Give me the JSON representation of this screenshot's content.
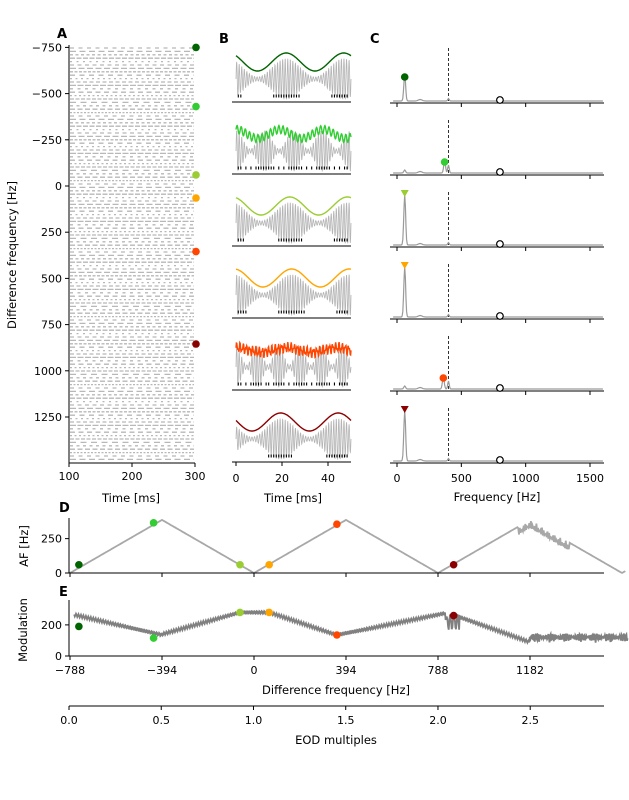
{
  "panel_letters": [
    "A",
    "B",
    "C",
    "D",
    "E"
  ],
  "colors": [
    "#006400",
    "#32cd32",
    "#9acd32",
    "#ffa500",
    "#ff4500",
    "#8b0000"
  ],
  "chart_data": [
    {
      "panel": "A",
      "type": "raster",
      "xlabel": "Time [ms]",
      "ylabel": "Difference frequency [Hz]",
      "xlim": [
        100,
        300
      ],
      "ylim": [
        -750,
        1350
      ],
      "xticks": [
        "100",
        "200",
        "300"
      ],
      "yticks": [
        "−750",
        "−500",
        "−250",
        "0",
        "250",
        "500",
        "750",
        "1000",
        "1250"
      ],
      "ytick_values": [
        -750,
        -500,
        -250,
        0,
        250,
        500,
        750,
        1000,
        1250
      ],
      "markers_df": [
        -750,
        -430,
        -60,
        65,
        355,
        855
      ]
    },
    {
      "panel": "B",
      "type": "line",
      "xlabel": "Time [ms]",
      "xlim": [
        0,
        50
      ],
      "xticks": [
        "0",
        "20",
        "40"
      ],
      "xtick_values": [
        0,
        20,
        40
      ],
      "rows": 6
    },
    {
      "panel": "C",
      "type": "line",
      "xlabel": "Frequency [Hz]",
      "xlim": [
        -30,
        1600
      ],
      "xticks": [
        "0",
        "500",
        "1000",
        "1500"
      ],
      "xtick_values": [
        0,
        500,
        1000,
        1500
      ],
      "eod_line": 400,
      "eod_harmonic": 800,
      "peaks": [
        60,
        370,
        60,
        60,
        360,
        60
      ]
    },
    {
      "panel": "D",
      "type": "line",
      "ylabel": "AF [Hz]",
      "ylim": [
        0,
        400
      ],
      "yticks": [
        "0",
        "250"
      ],
      "ytick_values": [
        0,
        250
      ],
      "markers": [
        [
          -750,
          60
        ],
        [
          -430,
          365
        ],
        [
          -60,
          60
        ],
        [
          65,
          60
        ],
        [
          355,
          355
        ],
        [
          855,
          60
        ]
      ]
    },
    {
      "panel": "E",
      "type": "line",
      "ylabel": "Modulation",
      "xlabel": "Difference frequency [Hz]",
      "xlim": [
        -800,
        1600
      ],
      "ylim": [
        0,
        360
      ],
      "yticks": [
        "0",
        "200"
      ],
      "ytick_values": [
        0,
        200
      ],
      "xticks": [
        "−788",
        "−394",
        "0",
        "394",
        "788",
        "1182"
      ],
      "xtick_values": [
        -788,
        -394,
        0,
        394,
        788,
        1182
      ],
      "markers": [
        [
          -750,
          190
        ],
        [
          -430,
          115
        ],
        [
          -60,
          280
        ],
        [
          65,
          280
        ],
        [
          355,
          135
        ],
        [
          855,
          260
        ]
      ],
      "x2label": "EOD multiples",
      "x2ticks": [
        "0.0",
        "0.5",
        "1.0",
        "1.5",
        "2.0",
        "2.5"
      ],
      "x2tick_values": [
        0,
        0.5,
        1,
        1.5,
        2,
        2.5
      ],
      "x2lim": [
        0,
        2.9
      ]
    }
  ]
}
